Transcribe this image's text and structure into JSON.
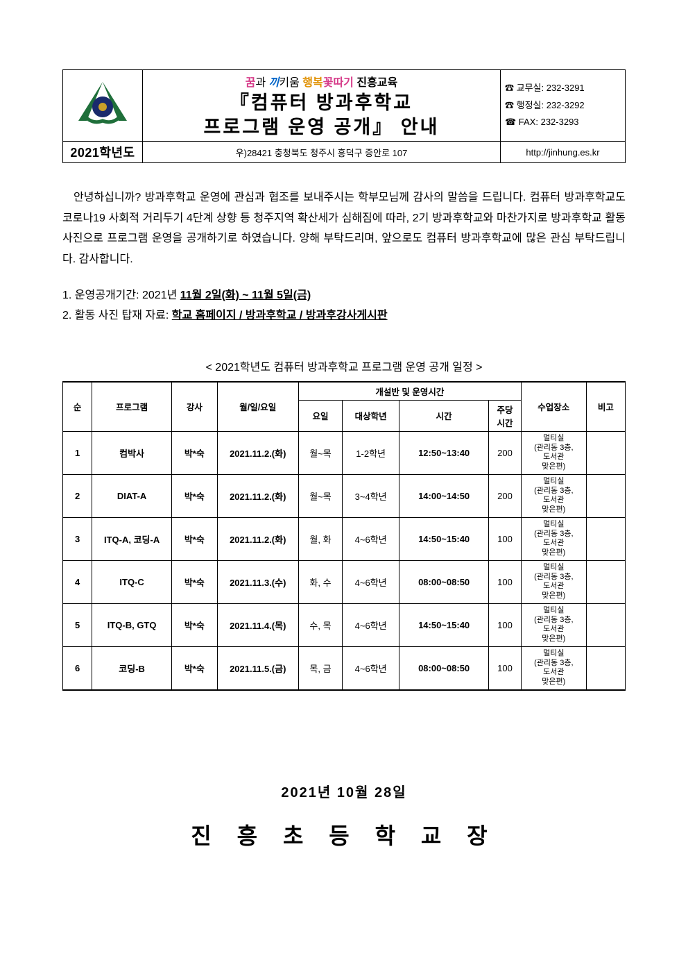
{
  "header": {
    "year_label": "2021학년도",
    "slogan_parts": {
      "a": "꿈",
      "b": "과 ",
      "c": "끼",
      "d": "키움 ",
      "e": "행복",
      "f": "꽃따기 ",
      "g": "진흥교육"
    },
    "title_line1": "『컴퓨터  방과후학교",
    "title_line2": "프로그램  운영  공개』  안내",
    "address": "우)28421    충청북도 청주시 흥덕구 증안로 107",
    "contact1": "☎ 교무실: 232-3291",
    "contact2": "☎ 행정실: 232-3292",
    "contact3": "☎ FAX: 232-3293",
    "url": "http://jinhung.es.kr"
  },
  "body": {
    "greeting": "안녕하십니까? 방과후학교 운영에 관심과 협조를 보내주시는 학부모님께 감사의 말씀을 드립니다. 컴퓨터 방과후학교도 코로나19 사회적 거리두기 4단계 상향 등 청주지역 확산세가 심해짐에 따라, 2기 방과후학교와 마찬가지로 방과후학교 활동사진으로 프로그램 운영을 공개하기로 하였습니다. 양해 부탁드리며, 앞으로도 컴퓨터 방과후학교에 많은 관심 부탁드립니다. 감사합니다.",
    "line1_prefix": "1. 운영공개기간: 2021년 ",
    "line1_dates": "11월 2일(화) ~ 11월 5일(금)",
    "line2_prefix": "2. 활동 사진 탑재 자료: ",
    "line2_loc": "학교 홈페이지 / 방과후학교 / 방과후강사게시판"
  },
  "schedule": {
    "caption": "< 2021학년도 컴퓨터 방과후학교 프로그램 운영 공개 일정 >",
    "headers": {
      "no": "순",
      "program": "프로그램",
      "teacher": "강사",
      "date": "월/일/요일",
      "class_span": "개설반 및 운영시간",
      "day": "요일",
      "grade": "대상학년",
      "time": "시간",
      "mins": "주당\n시간",
      "place": "수업장소",
      "note": "비고"
    },
    "place_text": "멀티실\n(관리동 3층,\n도서관\n맞은편)",
    "rows": [
      {
        "no": "1",
        "program": "컴박사",
        "teacher": "박*숙",
        "date": "2021.11.2.(화)",
        "day": "월~목",
        "grade": "1-2학년",
        "time": "12:50~13:40",
        "mins": "200"
      },
      {
        "no": "2",
        "program": "DIAT-A",
        "teacher": "박*숙",
        "date": "2021.11.2.(화)",
        "day": "월~목",
        "grade": "3~4학년",
        "time": "14:00~14:50",
        "mins": "200"
      },
      {
        "no": "3",
        "program": "ITQ-A, 코딩-A",
        "teacher": "박*숙",
        "date": "2021.11.2.(화)",
        "day": "월, 화",
        "grade": "4~6학년",
        "time": "14:50~15:40",
        "mins": "100"
      },
      {
        "no": "4",
        "program": "ITQ-C",
        "teacher": "박*숙",
        "date": "2021.11.3.(수)",
        "day": "화, 수",
        "grade": "4~6학년",
        "time": "08:00~08:50",
        "mins": "100"
      },
      {
        "no": "5",
        "program": "ITQ-B, GTQ",
        "teacher": "박*숙",
        "date": "2021.11.4.(목)",
        "day": "수, 목",
        "grade": "4~6학년",
        "time": "14:50~15:40",
        "mins": "100"
      },
      {
        "no": "6",
        "program": "코딩-B",
        "teacher": "박*숙",
        "date": "2021.11.5.(금)",
        "day": "목, 금",
        "grade": "4~6학년",
        "time": "08:00~08:50",
        "mins": "100"
      }
    ]
  },
  "footer": {
    "date": "2021년   10월   28일",
    "sign": "진 흥 초 등 학 교 장"
  },
  "colors": {
    "text": "#000000",
    "slogan_pink": "#d63b89",
    "slogan_blue": "#0064c8",
    "slogan_gold": "#e09000",
    "logo_green": "#1f6f3a",
    "logo_navy": "#1a2a6c",
    "logo_gold": "#caa02a"
  },
  "typography": {
    "body_fontsize_pt": 12,
    "title_fontsize_pt": 20,
    "footer_sign_fontsize_pt": 24
  }
}
